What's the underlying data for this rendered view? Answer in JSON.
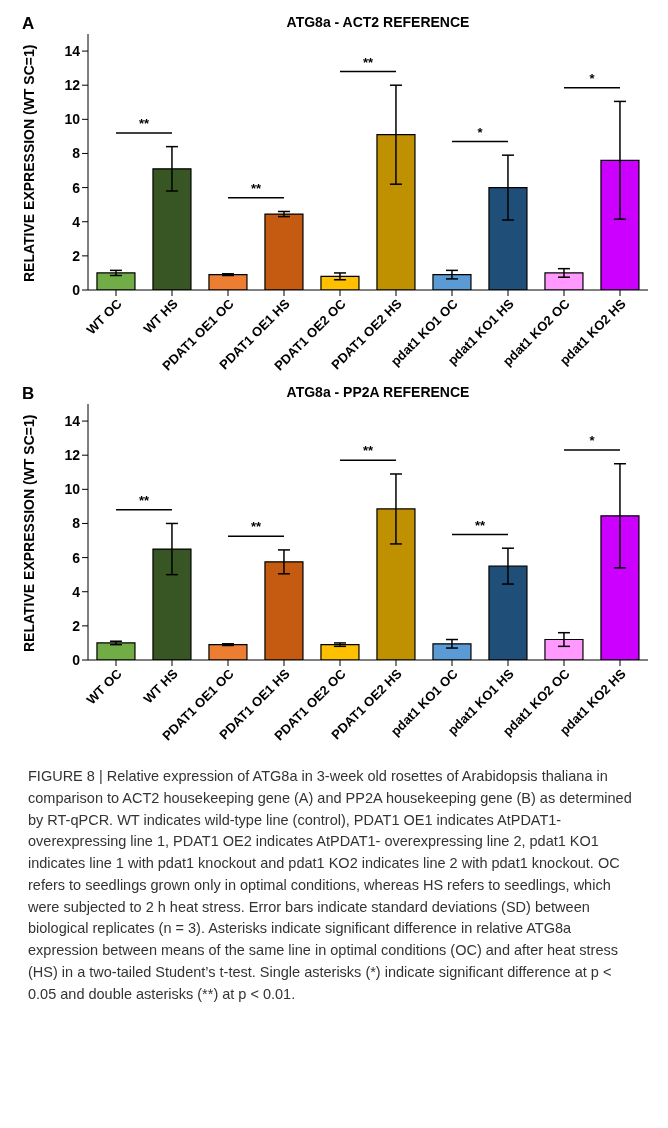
{
  "chart_data": [
    {
      "type": "bar",
      "title": "ATG8a - ACT2 REFERENCE",
      "ylabel": "RELATIVE EXPRESSION (WT SC=1)",
      "categories": [
        "WT OC",
        "WT HS",
        "PDAT1 OE1 OC",
        "PDAT1 OE1 HS",
        "PDAT1 OE2 OC",
        "PDAT1 OE2 HS",
        "pdat1 KO1 OC",
        "pdat1 KO1 HS",
        "pdat1 KO2 OC",
        "pdat1 KO2 HS"
      ],
      "values": [
        1.0,
        7.1,
        0.9,
        4.45,
        0.8,
        9.1,
        0.9,
        6.0,
        1.0,
        7.6
      ],
      "errors": [
        0.15,
        1.3,
        0.05,
        0.15,
        0.2,
        2.9,
        0.25,
        1.9,
        0.25,
        3.45
      ],
      "colors": [
        "#70ad47",
        "#375623",
        "#ed7d31",
        "#c55a11",
        "#ffc000",
        "#bf9000",
        "#5b9bd5",
        "#1f4e79",
        "#ff99ff",
        "#cc00ff"
      ],
      "ylim": [
        0,
        15
      ],
      "yticks": [
        0,
        2,
        4,
        6,
        8,
        10,
        12,
        14
      ],
      "grid": false,
      "legend": false,
      "annotations": [
        "A",
        "**",
        "**",
        "**",
        "*",
        "*"
      ]
    },
    {
      "type": "bar",
      "title": "ATG8a - PP2A REFERENCE",
      "ylabel": "RELATIVE EXPRESSION (WT SC=1)",
      "categories": [
        "WT OC",
        "WT HS",
        "PDAT1 OE1 OC",
        "PDAT1 OE1 HS",
        "PDAT1 OE2 OC",
        "PDAT1 OE2 HS",
        "pdat1 KO1 OC",
        "pdat1 KO1 HS",
        "pdat1 KO2 OC",
        "pdat1 KO2 HS"
      ],
      "values": [
        1.0,
        6.5,
        0.9,
        5.75,
        0.9,
        8.85,
        0.95,
        5.5,
        1.2,
        8.45
      ],
      "errors": [
        0.1,
        1.5,
        0.05,
        0.7,
        0.1,
        2.05,
        0.25,
        1.05,
        0.4,
        3.05
      ],
      "colors": [
        "#70ad47",
        "#375623",
        "#ed7d31",
        "#c55a11",
        "#ffc000",
        "#bf9000",
        "#5b9bd5",
        "#1f4e79",
        "#ff99ff",
        "#cc00ff"
      ],
      "ylim": [
        0,
        15
      ],
      "yticks": [
        0,
        2,
        4,
        6,
        8,
        10,
        12,
        14
      ],
      "grid": false,
      "legend": false,
      "annotations": [
        "B",
        "**",
        "**",
        "**",
        "**",
        "*",
        "FIGURE 8 | Relative expression of ATG8a in 3-week old rosettes of Arabidopsis thaliana in comparison to ACT2 housekeeping gene (A) and PP2A housekeeping gene (B) as determined by RT-qPCR. WT indicates wild-type line (control), PDAT1 OE1 indicates AtPDAT1- overexpressing line 1, PDAT1 OE2 indicates AtPDAT1- overexpressing line 2, pdat1 KO1 indicates line 1 with pdat1 knockout and pdat1 KO2 indicates line 2 with pdat1 knockout. OC refers to seedlings grown only in optimal conditions, whereas HS refers to seedlings, which were subjected to 2 h heat stress. Error bars indicate standard deviations (SD) between biological replicates (n = 3). Asterisks indicate significant difference in relative ATG8a expression between means of the same line in optimal conditions (OC) and after heat stress (HS) in a two-tailed Student’s t-test. Single asterisks (*) indicate significant difference at p < 0.05 and double asterisks (**) at p < 0.01."
      ]
    }
  ]
}
